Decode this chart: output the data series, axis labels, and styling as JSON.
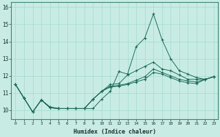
{
  "title": "",
  "xlabel": "Humidex (Indice chaleur)",
  "ylabel": "",
  "background_color": "#c8ece4",
  "grid_color": "#a8dcd0",
  "line_color": "#1a6858",
  "x_ticks": [
    0,
    1,
    2,
    3,
    4,
    5,
    6,
    7,
    8,
    9,
    10,
    11,
    12,
    13,
    14,
    15,
    16,
    17,
    18,
    19,
    20,
    21,
    22,
    23
  ],
  "y_ticks": [
    10,
    11,
    12,
    13,
    14,
    15,
    16
  ],
  "xlim": [
    -0.5,
    23.5
  ],
  "ylim": [
    9.5,
    16.3
  ],
  "series": [
    [
      11.5,
      10.7,
      9.9,
      10.6,
      10.2,
      10.1,
      10.1,
      10.1,
      10.1,
      10.1,
      10.65,
      11.1,
      12.25,
      12.1,
      13.7,
      14.2,
      15.6,
      14.1,
      13.0,
      12.3,
      12.1,
      11.9,
      11.8,
      11.95
    ],
    [
      11.5,
      10.7,
      9.9,
      10.6,
      10.15,
      10.1,
      10.1,
      10.1,
      10.1,
      10.65,
      11.1,
      11.5,
      11.55,
      12.05,
      12.3,
      12.55,
      12.8,
      12.4,
      12.3,
      12.05,
      11.8,
      11.8,
      11.8,
      11.95
    ],
    [
      11.5,
      10.7,
      9.9,
      10.6,
      10.15,
      10.1,
      10.1,
      10.1,
      10.1,
      10.65,
      11.1,
      11.4,
      11.45,
      11.55,
      11.75,
      11.95,
      12.4,
      12.2,
      12.0,
      11.8,
      11.7,
      11.65,
      11.8,
      11.95
    ],
    [
      11.5,
      10.7,
      9.9,
      10.6,
      10.15,
      10.1,
      10.1,
      10.1,
      10.1,
      10.65,
      11.1,
      11.35,
      11.4,
      11.5,
      11.65,
      11.8,
      12.2,
      12.1,
      11.9,
      11.7,
      11.6,
      11.55,
      11.8,
      11.95
    ]
  ]
}
